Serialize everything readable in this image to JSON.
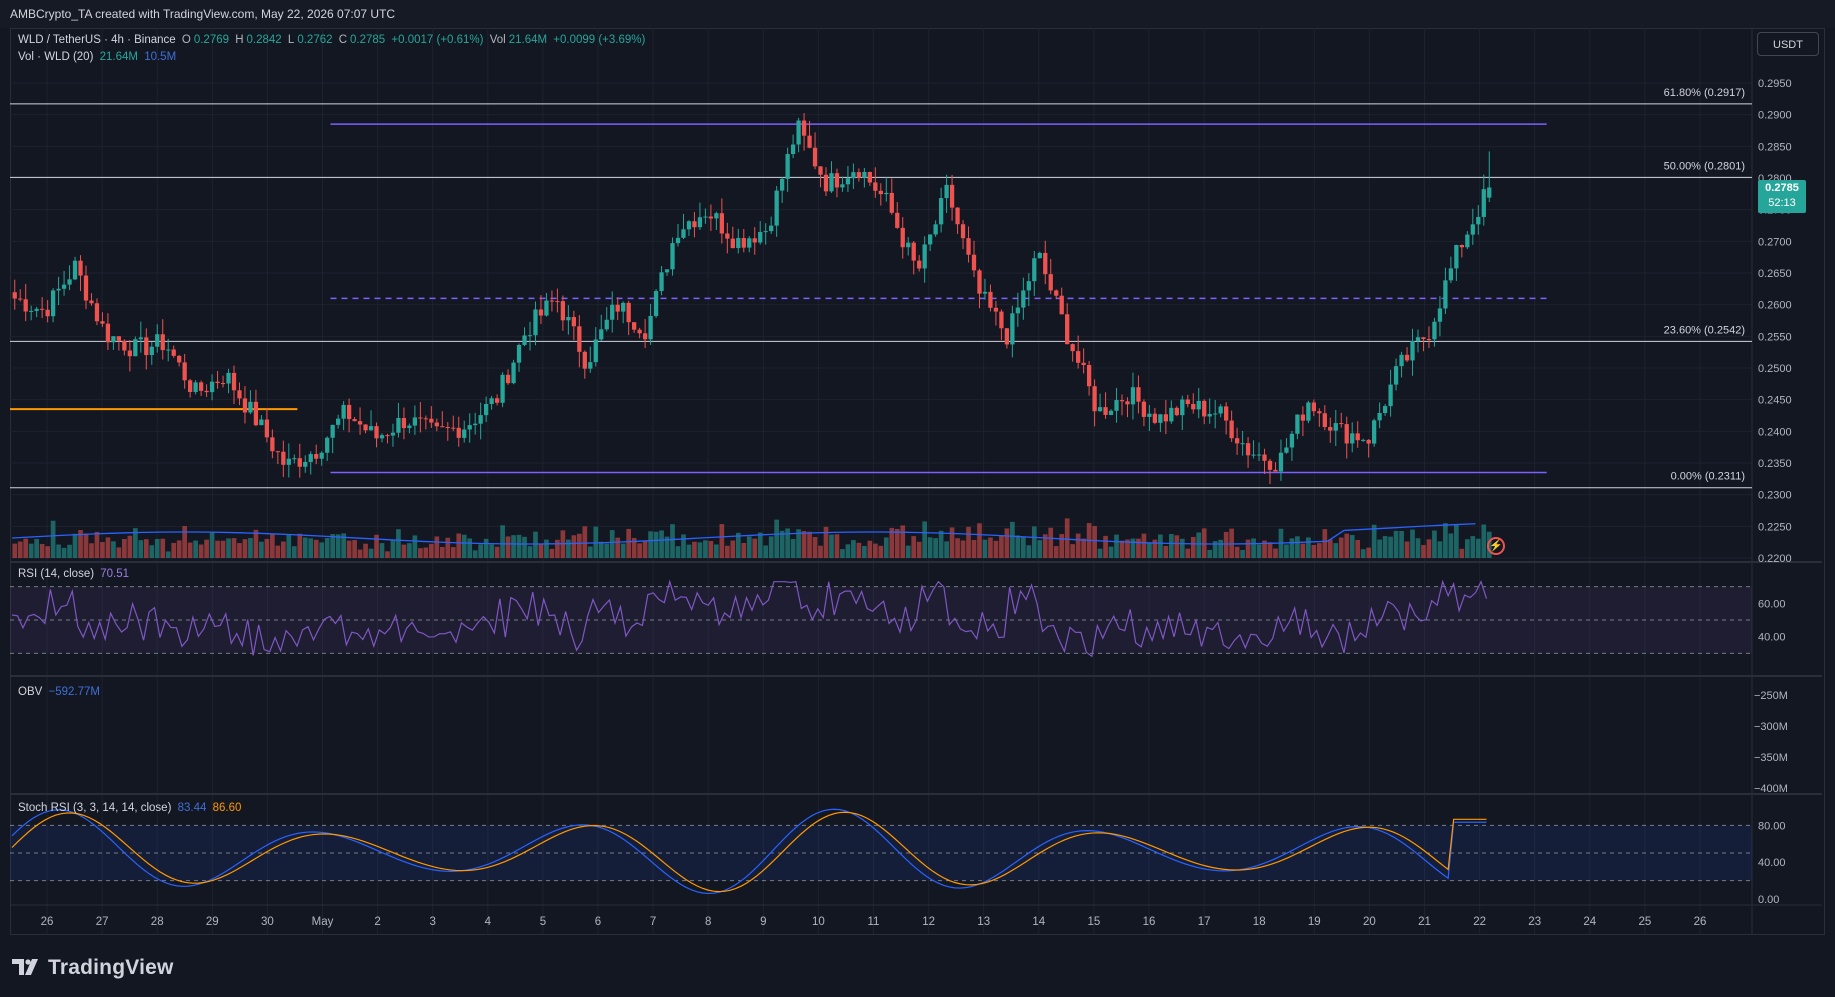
{
  "header": {
    "credit": "AMBCrypto_TA created with TradingView.com, May 22, 2026 07:07 UTC"
  },
  "main_legend": {
    "symbol": "WLD / TetherUS · 4h · Binance",
    "o_label": "O",
    "o_value": "0.2769",
    "h_label": "H",
    "h_value": "0.2842",
    "l_label": "L",
    "l_value": "0.2762",
    "c_label": "C",
    "c_value": "0.2785",
    "change": "+0.0017 (+0.61%)",
    "vol_label": "Vol",
    "vol_value": "21.64M",
    "vol_change": "+0.0099 (+3.69%)"
  },
  "vol_legend": {
    "name": "Vol · WLD (20)",
    "value1": "21.64M",
    "value2": "10.5M"
  },
  "currency_button": "USDT",
  "price_badge": {
    "price": "0.2785",
    "countdown": "52:13"
  },
  "rsi_legend": {
    "name": "RSI (14, close)",
    "value": "70.51"
  },
  "obv_legend": {
    "name": "OBV",
    "value": "−592.77M"
  },
  "stoch_legend": {
    "name": "Stoch RSI (3, 3, 14, 14, close)",
    "k": "83.44",
    "d": "86.60"
  },
  "footer": {
    "brand": "TradingView"
  },
  "colors": {
    "up": "#26a69a",
    "down": "#ef5350",
    "vol_ma": "#2962ff",
    "rsi": "#7e57c2",
    "stoch_k": "#2962ff",
    "stoch_d": "#ff9800",
    "fib": "#d1d4dc",
    "box": "#7b61ff",
    "bg": "#131722"
  },
  "chart_data": [
    {
      "type": "candlestick",
      "title": "WLD / TetherUS · 4h · Binance",
      "ylim": [
        0.22,
        0.297
      ],
      "y_ticks": [
        "0.2950",
        "0.2900",
        "0.2850",
        "0.2800",
        "0.2750",
        "0.2700",
        "0.2650",
        "0.2600",
        "0.2550",
        "0.2500",
        "0.2450",
        "0.2400",
        "0.2350",
        "0.2300",
        "0.2250",
        "0.2200"
      ],
      "x_ticks": [
        "26",
        "27",
        "28",
        "29",
        "30",
        "May",
        "2",
        "3",
        "4",
        "5",
        "6",
        "7",
        "8",
        "9",
        "10",
        "11",
        "12",
        "13",
        "14",
        "15",
        "16",
        "17",
        "18",
        "19",
        "20",
        "21",
        "22",
        "23",
        "24",
        "25",
        "26"
      ],
      "close_path": [
        [
          "26",
          0.261
        ],
        [
          "27",
          0.259
        ],
        [
          "27.5",
          0.266
        ],
        [
          "28",
          0.2555
        ],
        [
          "28.5",
          0.253
        ],
        [
          "29",
          0.254
        ],
        [
          "29.5",
          0.246
        ],
        [
          "30",
          0.249
        ],
        [
          "May",
          0.242
        ],
        [
          "2",
          0.2345
        ],
        [
          "2.5",
          0.237
        ],
        [
          "3",
          0.243
        ],
        [
          "3.5",
          0.239
        ],
        [
          "4",
          0.242
        ],
        [
          "4.5",
          0.2395
        ],
        [
          "5",
          0.241
        ],
        [
          "5.5",
          0.245
        ],
        [
          "6",
          0.256
        ],
        [
          "6.5",
          0.261
        ],
        [
          "7",
          0.251
        ],
        [
          "7.5",
          0.26
        ],
        [
          "8",
          0.256
        ],
        [
          "8.5",
          0.272
        ],
        [
          "9",
          0.275
        ],
        [
          "9.5",
          0.27
        ],
        [
          "10",
          0.272
        ],
        [
          "10.5",
          0.288
        ],
        [
          "11",
          0.279
        ],
        [
          "11.5",
          0.282
        ],
        [
          "12",
          0.276
        ],
        [
          "12.5",
          0.265
        ],
        [
          "13",
          0.278
        ],
        [
          "13.5",
          0.262
        ],
        [
          "14",
          0.255
        ],
        [
          "14.5",
          0.268
        ],
        [
          "15",
          0.255
        ],
        [
          "15.5",
          0.243
        ],
        [
          "16",
          0.246
        ],
        [
          "16.5",
          0.242
        ],
        [
          "17",
          0.244
        ],
        [
          "17.5",
          0.243
        ],
        [
          "18",
          0.237
        ],
        [
          "18.5",
          0.235
        ],
        [
          "19",
          0.245
        ],
        [
          "19.5",
          0.24
        ],
        [
          "20",
          0.239
        ],
        [
          "20.5",
          0.25
        ],
        [
          "21",
          0.256
        ],
        [
          "21.5",
          0.269
        ],
        [
          "22",
          0.2785
        ]
      ],
      "last": {
        "open": 0.2769,
        "high": 0.2842,
        "low": 0.2762,
        "close": 0.2785
      },
      "fibonacci": [
        {
          "label": "61.80% (0.2917)",
          "price": 0.2917
        },
        {
          "label": "50.00% (0.2801)",
          "price": 0.2801
        },
        {
          "label": "23.60% (0.2542)",
          "price": 0.2542
        },
        {
          "label": "0.00% (0.2311)",
          "price": 0.2311
        }
      ],
      "range_box": {
        "top": 0.2885,
        "mid": 0.261,
        "bottom": 0.2335
      },
      "horizontal_line": {
        "price": 0.2435,
        "color": "#ff9800"
      }
    },
    {
      "type": "bar",
      "title": "Vol · WLD (20)",
      "last_volume": "21.64M",
      "ma": "10.5M"
    },
    {
      "type": "line",
      "title": "RSI (14, close)",
      "value": 70.51,
      "y_ticks": [
        "60.00",
        "40.00"
      ]
    },
    {
      "type": "line",
      "title": "OBV",
      "value": "−592.77M",
      "y_ticks": [
        "−250M",
        "−300M",
        "−350M",
        "−400M"
      ]
    },
    {
      "type": "line",
      "title": "Stoch RSI (3, 3, 14, 14, close)",
      "k": 83.44,
      "d": 86.6,
      "y_ticks": [
        "80.00",
        "40.00",
        "0.00"
      ]
    }
  ]
}
